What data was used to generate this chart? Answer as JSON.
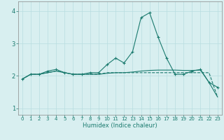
{
  "xlabel": "Humidex (Indice chaleur)",
  "x_values": [
    0,
    1,
    2,
    3,
    4,
    5,
    6,
    7,
    8,
    9,
    10,
    11,
    12,
    13,
    14,
    15,
    16,
    17,
    18,
    19,
    20,
    21,
    22,
    23
  ],
  "line1_y": [
    1.9,
    2.05,
    2.05,
    2.15,
    2.2,
    2.1,
    2.05,
    2.05,
    2.1,
    2.1,
    2.35,
    2.55,
    2.4,
    2.75,
    3.8,
    3.95,
    3.2,
    2.55,
    2.05,
    2.05,
    2.15,
    2.2,
    1.8,
    1.65
  ],
  "line2_y": [
    1.9,
    2.05,
    2.05,
    2.1,
    2.15,
    2.1,
    2.05,
    2.05,
    2.05,
    2.05,
    2.1,
    2.1,
    2.1,
    2.1,
    2.1,
    2.1,
    2.1,
    2.1,
    2.1,
    2.1,
    2.1,
    2.1,
    2.1,
    1.35
  ],
  "line3_y": [
    1.9,
    2.05,
    2.05,
    2.1,
    2.15,
    2.1,
    2.05,
    2.05,
    2.05,
    2.05,
    2.08,
    2.1,
    2.1,
    2.12,
    2.15,
    2.17,
    2.18,
    2.18,
    2.18,
    2.17,
    2.17,
    2.18,
    1.8,
    1.35
  ],
  "line_color": "#1a7a6e",
  "bg_color": "#d8eff0",
  "grid_color": "#b8dde0",
  "ylim": [
    0.8,
    4.3
  ],
  "xlim": [
    -0.5,
    23.5
  ],
  "yticks": [
    1,
    2,
    3,
    4
  ],
  "xticks": [
    0,
    1,
    2,
    3,
    4,
    5,
    6,
    7,
    8,
    9,
    10,
    11,
    12,
    13,
    14,
    15,
    16,
    17,
    18,
    19,
    20,
    21,
    22,
    23
  ]
}
